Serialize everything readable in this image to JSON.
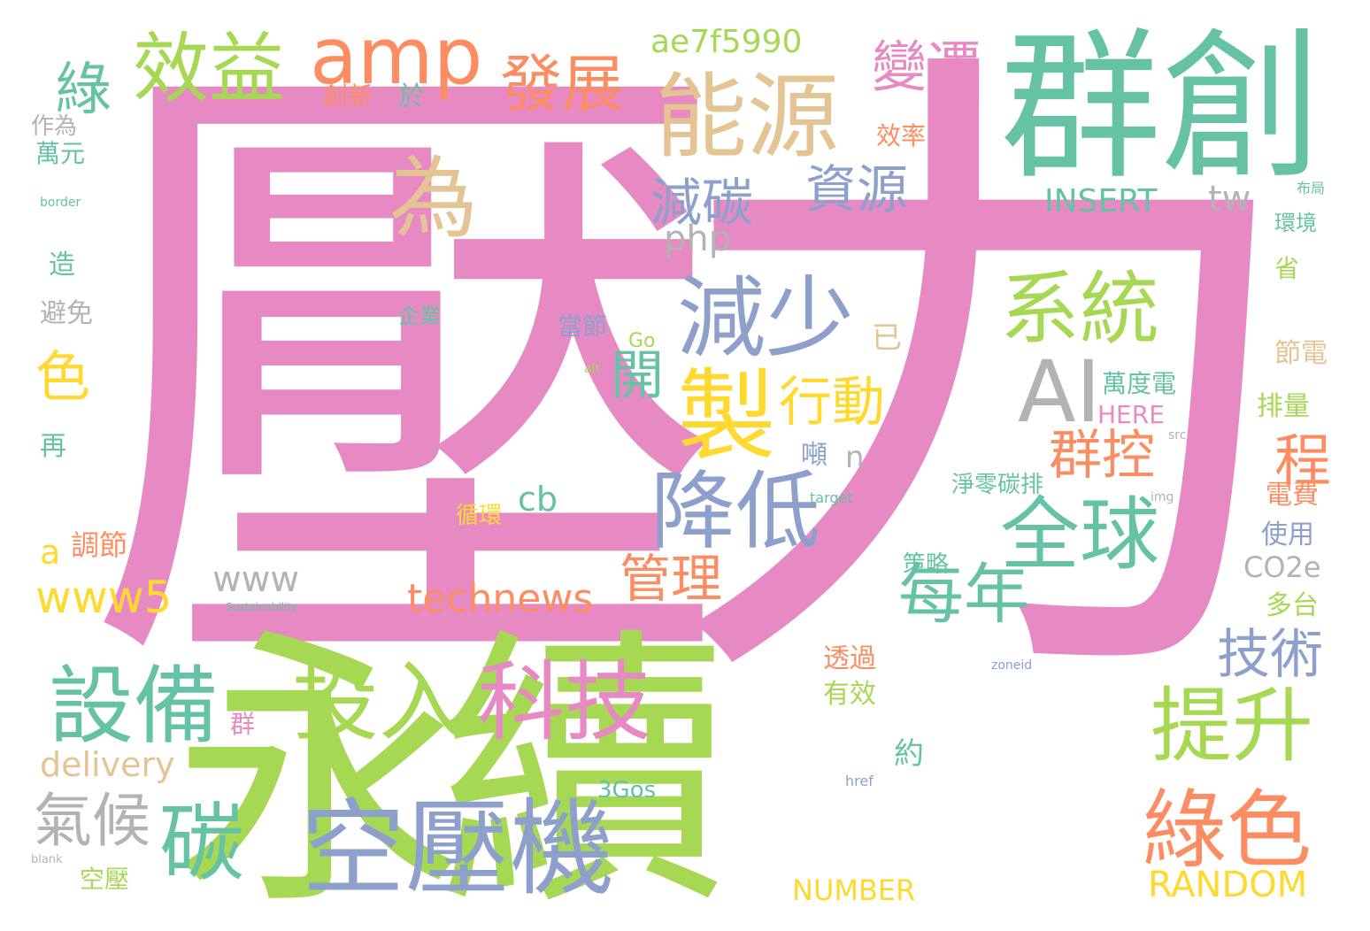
{
  "palette": {
    "pink": "#e78ac3",
    "green": "#a6d854",
    "teal": "#66c2a5",
    "orange": "#fc8d62",
    "blue": "#8da0cb",
    "yellow": "#ffd92f",
    "tan": "#e5c494",
    "gray": "#b3b3b3"
  },
  "words": [
    "壓力",
    "永續",
    "群創",
    "空壓機",
    "科技",
    "投入",
    "設備",
    "能源",
    "減少",
    "系統",
    "全球",
    "提升",
    "綠色",
    "製",
    "降低",
    "效益",
    "amp",
    "發展",
    "變遷",
    "為",
    "AI",
    "減碳",
    "資源",
    "行動",
    "群控",
    "管理",
    "技術",
    "每年",
    "碳",
    "氣候",
    "www5",
    "technews",
    "delivery",
    "RANDOM",
    "ae7f5990",
    "INSERT",
    "tw",
    "php",
    "www",
    "程",
    "色",
    "綠",
    "開",
    "cb",
    "a",
    "調節",
    "萬元",
    "萬度電",
    "已",
    "NUMBER",
    "CO2e",
    "3Gos",
    "HERE",
    "創新",
    "於",
    "效率",
    "當節",
    "企業",
    "淨零碳排",
    "策略",
    "透過",
    "有效",
    "循環",
    "約",
    "省",
    "排量",
    "節電",
    "電費",
    "使用",
    "多台",
    "環境",
    "避免",
    "造",
    "作為",
    "再",
    "空壓",
    "n",
    "Go",
    "群",
    "噸",
    "布局",
    "src",
    "img",
    "href",
    "target",
    "zoneid",
    "Sustainability",
    "border",
    "alt",
    "blank"
  ]
}
